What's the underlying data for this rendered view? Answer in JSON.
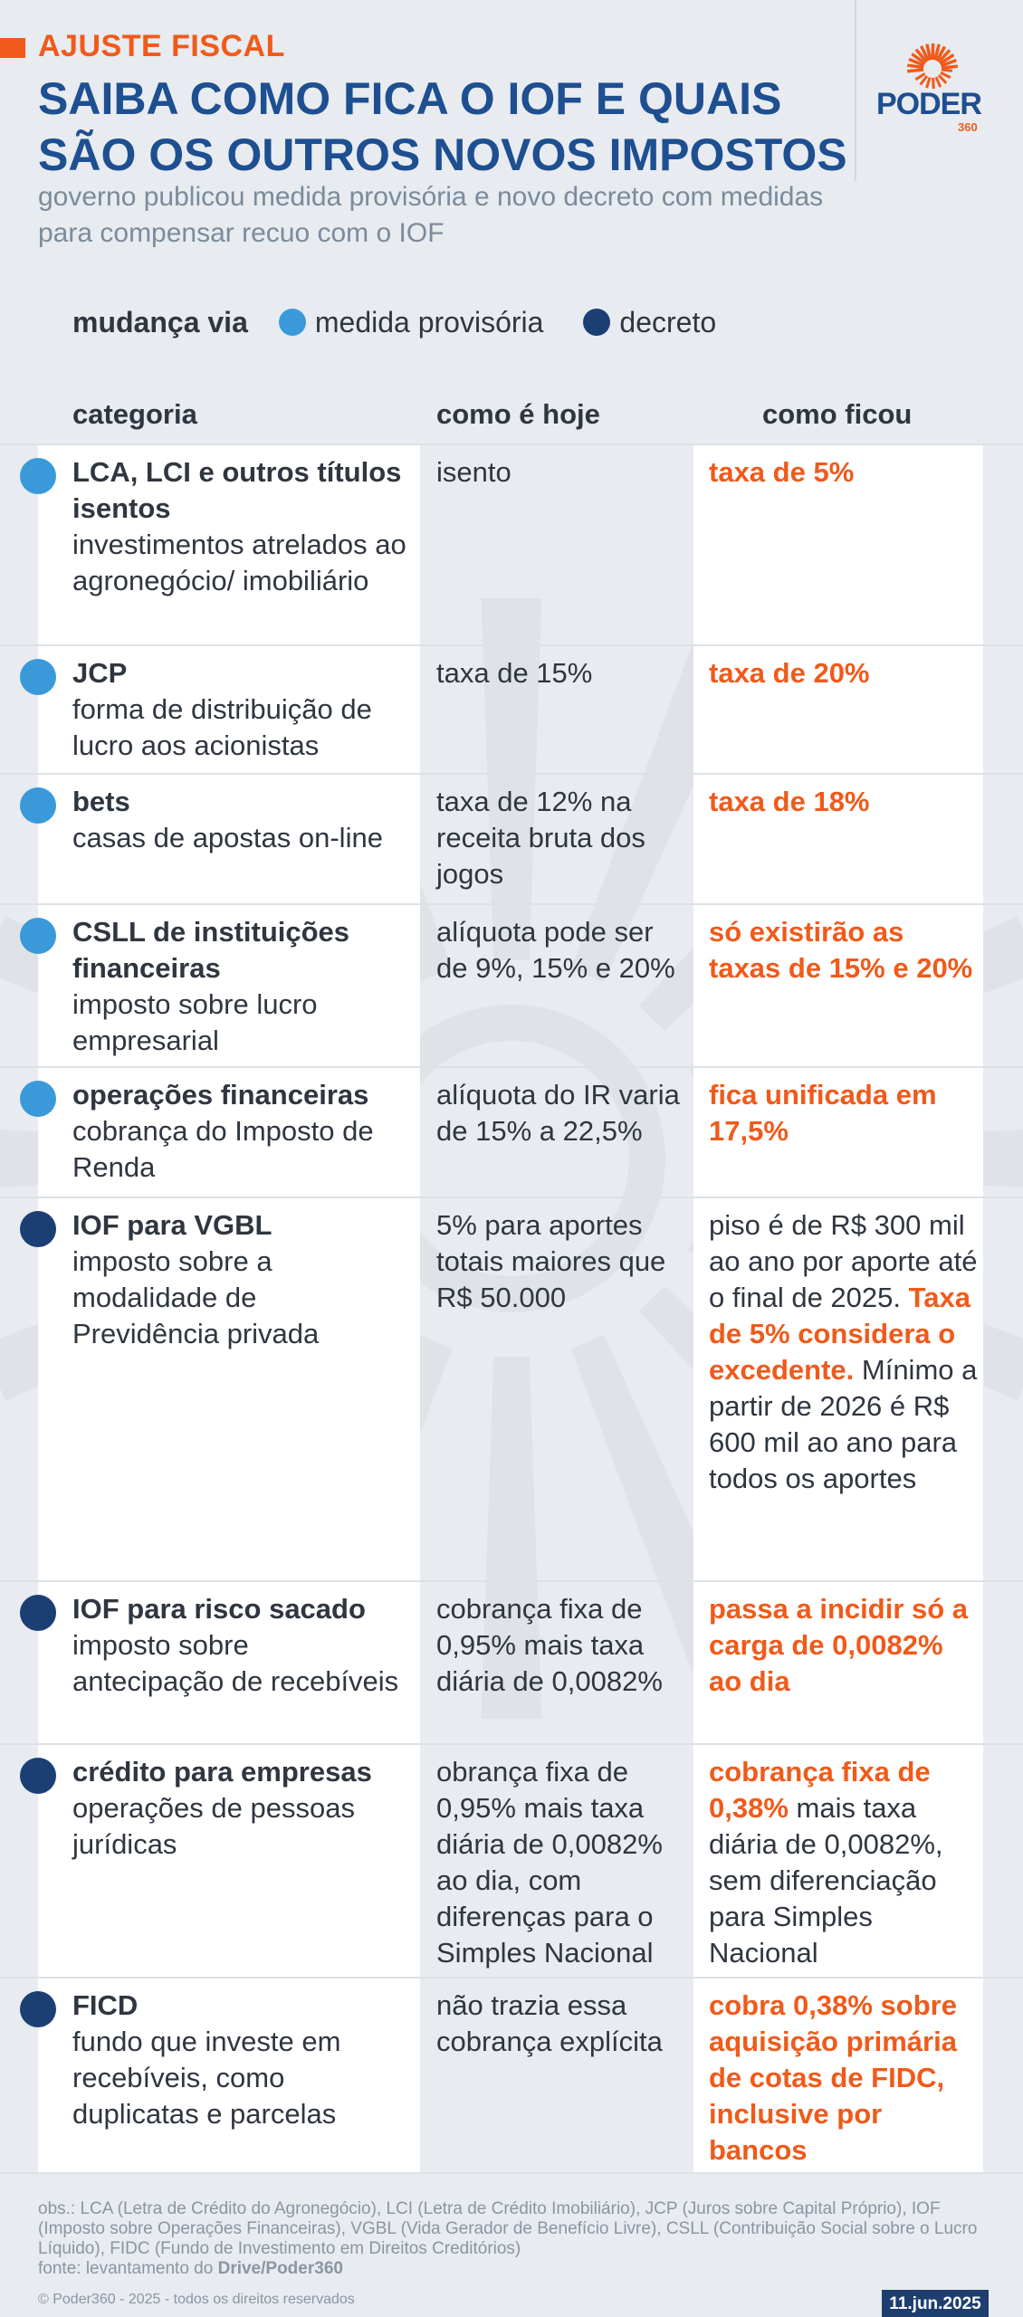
{
  "header": {
    "kicker": "AJUSTE FISCAL",
    "title": "SAIBA COMO FICA O IOF E QUAIS SÃO OS OUTROS NOVOS IMPOSTOS",
    "subtitle": "governo publicou medida provisória e novo decreto com medidas para compensar recuo com o IOF",
    "logo_text": "PODER",
    "logo_sub": "360"
  },
  "legend": {
    "label": "mudança via",
    "items": [
      {
        "label": "medida provisória",
        "color": "#3a9ad9"
      },
      {
        "label": "decreto",
        "color": "#1b3f73"
      }
    ]
  },
  "columns": {
    "categoria": "categoria",
    "hoje": "como é hoje",
    "ficou": "como ficou"
  },
  "rows": [
    {
      "type": "mp",
      "name": "LCA, LCI e outros títulos isentos",
      "desc": "investimentos atrelados ao agronegócio/ imobiliário",
      "hoje": "isento",
      "ficou": [
        {
          "t": "taxa de 5%",
          "o": true
        }
      ]
    },
    {
      "type": "mp",
      "name": "JCP",
      "desc": "forma de distribuição de lucro aos acionistas",
      "hoje": "taxa de 15%",
      "ficou": [
        {
          "t": "taxa de 20%",
          "o": true
        }
      ]
    },
    {
      "type": "mp",
      "name": "bets",
      "desc": "casas de apostas on-line",
      "hoje": "taxa de 12% na receita bruta dos jogos",
      "ficou": [
        {
          "t": "taxa de 18%",
          "o": true
        }
      ]
    },
    {
      "type": "mp",
      "name": "CSLL de instituições financeiras",
      "desc": "imposto sobre lucro empresarial",
      "hoje": "alíquota pode ser de 9%, 15% e 20%",
      "ficou": [
        {
          "t": "só existirão as taxas de 15% e 20%",
          "o": true
        }
      ]
    },
    {
      "type": "mp",
      "name": "operações financeiras",
      "desc": "cobrança do Imposto de Renda",
      "hoje": "alíquota do IR varia de 15% a 22,5%",
      "ficou": [
        {
          "t": "fica unificada em 17,5%",
          "o": true
        }
      ]
    },
    {
      "type": "decreto",
      "name": "IOF para VGBL",
      "desc": "imposto sobre a modalidade de Previdência privada",
      "hoje": "5% para aportes totais maiores que R$ 50.000",
      "ficou": [
        {
          "t": "piso é de R$ 300 mil ao ano por aporte até o final de 2025. ",
          "o": false
        },
        {
          "t": "Taxa de 5% considera o excedente.",
          "o": true
        },
        {
          "t": " Mínimo a partir de 2026 é R$ 600 mil ao ano para todos os aportes",
          "o": false
        }
      ]
    },
    {
      "type": "decreto",
      "name": "IOF para risco sacado",
      "desc": "imposto sobre antecipação de recebíveis",
      "hoje": "cobrança fixa de 0,95% mais taxa diária de 0,0082%",
      "ficou": [
        {
          "t": "passa a incidir só a carga de 0,0082% ao dia",
          "o": true
        }
      ]
    },
    {
      "type": "decreto",
      "name": "crédito para empresas",
      "desc": "operações de pessoas jurídicas",
      "hoje": "obrança fixa de 0,95% mais taxa diária de 0,0082% ao dia, com diferenças para o Simples Nacional",
      "ficou": [
        {
          "t": "cobrança fixa de 0,38%",
          "o": true
        },
        {
          "t": " mais taxa diária de 0,0082%, sem diferenciação para Simples Nacional",
          "o": false
        }
      ]
    },
    {
      "type": "decreto",
      "name": "FICD",
      "desc": "fundo que investe em recebíveis, como duplicatas e parcelas",
      "hoje": "não trazia essa cobrança explícita",
      "ficou": [
        {
          "t": "cobra 0,38% sobre aquisição primária de cotas de FIDC, inclusive por bancos",
          "o": true
        }
      ]
    }
  ],
  "footer": {
    "obs": "obs.: LCA (Letra de Crédito do Agronegócio), LCI (Letra de Crédito Imobiliário), JCP (Juros sobre Capital Próprio), IOF (Imposto sobre Operações Financeiras), VGBL (Vida Gerador de Benefício Livre), CSLL (Contribuição Social sobre o Lucro Líquido), FIDC (Fundo de Investimento em Direitos Creditórios)",
    "fonte_prefix": "fonte: levantamento do ",
    "fonte_source": "Drive/Poder360",
    "copyright": "© Poder360 - 2025 - todos os direitos reservados",
    "date": "11.jun.2025"
  },
  "colors": {
    "accent": "#f05a1a",
    "brand": "#1d4f91",
    "mp": "#3a9ad9",
    "decreto": "#1b3f73"
  }
}
